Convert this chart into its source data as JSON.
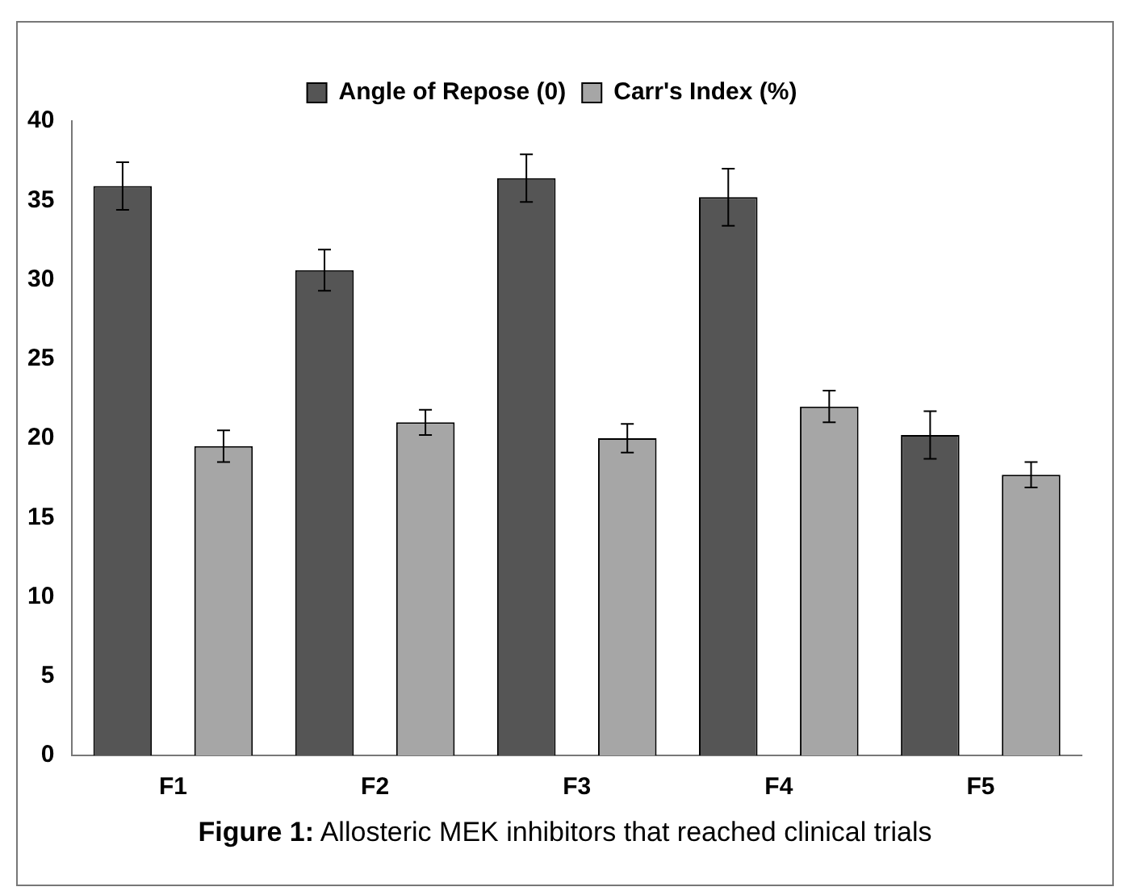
{
  "chart_data": {
    "type": "bar",
    "categories": [
      "F1",
      "F2",
      "F3",
      "F4",
      "F5"
    ],
    "series": [
      {
        "name": "Angle of Repose (0)",
        "color": "#555555",
        "values": [
          35.9,
          30.6,
          36.4,
          35.2,
          20.2
        ],
        "errors": [
          1.5,
          1.3,
          1.5,
          1.8,
          1.5
        ]
      },
      {
        "name": "Carr's Index (%)",
        "color": "#a6a6a6",
        "values": [
          19.5,
          21.0,
          20.0,
          22.0,
          17.7
        ],
        "errors": [
          1.0,
          0.8,
          0.9,
          1.0,
          0.8
        ]
      }
    ],
    "ylim": [
      0,
      40
    ],
    "yticks": [
      0,
      5,
      10,
      15,
      20,
      25,
      30,
      35,
      40
    ],
    "grid": false,
    "legend": "top",
    "annotations": [
      "Figure 1: Allosteric MEK inhibitors that reached clinical trials"
    ]
  }
}
